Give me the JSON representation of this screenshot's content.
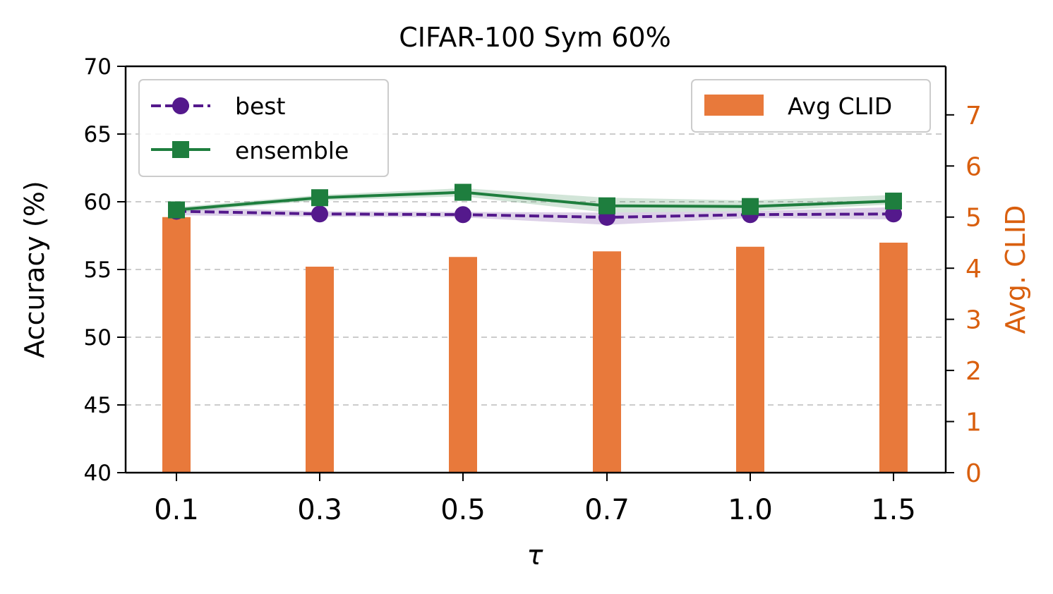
{
  "chart_data": {
    "type": "bar+line",
    "title": "CIFAR-100 Sym 60%",
    "xlabel": "τ",
    "ylabel": "Accuracy (%)",
    "y2label": "Avg. CLID",
    "categories": [
      "0.1",
      "0.3",
      "0.5",
      "0.7",
      "1.0",
      "1.5"
    ],
    "ylim": [
      40,
      70
    ],
    "yticks": [
      40,
      45,
      50,
      55,
      60,
      65,
      70
    ],
    "y2lim": [
      0,
      7.95
    ],
    "y2ticks": [
      0,
      1,
      2,
      3,
      4,
      5,
      6,
      7
    ],
    "grid": "horizontal dashed",
    "line_legend_placement": "top-left",
    "bar_legend_placement": "top-right",
    "series": [
      {
        "name": "best",
        "kind": "line",
        "style": "dashed",
        "marker": "circle",
        "color": "#54198c",
        "values": [
          59.3,
          59.1,
          59.05,
          58.85,
          59.05,
          59.1
        ],
        "band_low": [
          59.0,
          58.9,
          58.85,
          58.3,
          58.8,
          58.7
        ],
        "band_high": [
          59.6,
          59.3,
          59.25,
          59.2,
          59.3,
          59.6
        ]
      },
      {
        "name": "ensemble",
        "kind": "line",
        "style": "solid",
        "marker": "square",
        "color": "#1e7e3e",
        "values": [
          59.4,
          60.3,
          60.7,
          59.7,
          59.65,
          60.05
        ],
        "band_low": [
          59.2,
          60.1,
          60.4,
          59.2,
          59.3,
          59.8
        ],
        "band_high": [
          59.6,
          60.5,
          61.0,
          60.3,
          60.1,
          60.5
        ]
      },
      {
        "name": "Avg CLID",
        "kind": "bar",
        "axis": "right",
        "color": "#e8793b",
        "values": [
          5.0,
          4.03,
          4.22,
          4.33,
          4.42,
          4.5
        ]
      }
    ]
  },
  "colors": {
    "axis": "#000000",
    "grid": "#cccccc",
    "right_axis": "#d95f0e"
  }
}
